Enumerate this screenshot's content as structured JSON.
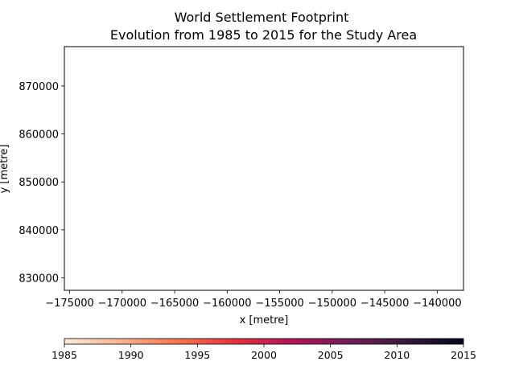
{
  "chart_data": {
    "type": "heatmap",
    "title": "World Settlement Footprint",
    "subtitle": " Evolution from 1985 to 2015 for the Study Area",
    "xlabel": "x [metre]",
    "ylabel": "y [metre]",
    "xlim": [
      -175500,
      -137500
    ],
    "ylim": [
      827400,
      878200
    ],
    "x_ticks": [
      -175000,
      -170000,
      -165000,
      -160000,
      -155000,
      -150000,
      -145000,
      -140000
    ],
    "x_tick_labels": [
      "−175000",
      "−170000",
      "−165000",
      "−160000",
      "−155000",
      "−150000",
      "−145000",
      "−140000"
    ],
    "y_ticks": [
      830000,
      840000,
      850000,
      860000,
      870000
    ],
    "y_tick_labels": [
      "830000",
      "840000",
      "850000",
      "860000",
      "870000"
    ],
    "grid": false,
    "data": [],
    "colorbar": {
      "orientation": "horizontal",
      "placement": "bottom",
      "range": [
        1985,
        2015
      ],
      "ticks": [
        1985,
        1990,
        1995,
        2000,
        2005,
        2010,
        2015
      ],
      "tick_labels": [
        "1985",
        "1990",
        "1995",
        "2000",
        "2005",
        "2010",
        "2015"
      ],
      "colormap": "rocket_r",
      "colors": [
        "#faebdd",
        "#f6b48f",
        "#f37651",
        "#e13342",
        "#ad1759",
        "#701f57",
        "#35193e",
        "#03051a"
      ]
    }
  }
}
